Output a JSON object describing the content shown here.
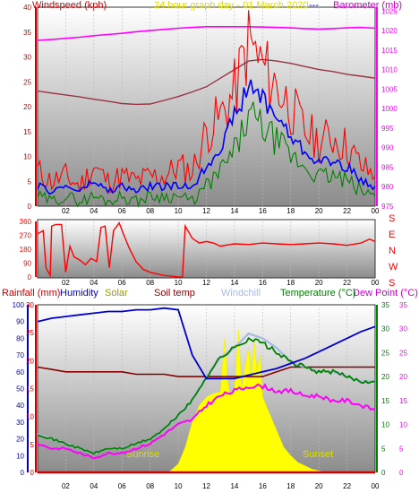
{
  "colors": {
    "wind_axis": "#cc0000",
    "gust": "#ff0000",
    "wind_avg": "#0000ff",
    "wind_low": "#008000",
    "barometer": "#ff00ff",
    "baro_trend": "#993344",
    "title": "#dddd00",
    "dir": "#ff0000",
    "rain": "#cc0000",
    "humidity": "#0000cc",
    "solar": "#ffff00",
    "soil": "#880000",
    "windchill": "#aabbdd",
    "temperature": "#008000",
    "dewpoint": "#ff00ff"
  },
  "chart_data": [
    {
      "type": "line",
      "title": "24 hour graph day - 01 March 2020",
      "title_suffix": "---",
      "xlabel": "",
      "x_ticks": [
        "02",
        "04",
        "06",
        "08",
        "10",
        "12",
        "14",
        "16",
        "18",
        "20",
        "22",
        "00"
      ],
      "x": [
        0,
        1,
        2,
        3,
        4,
        5,
        6,
        7,
        8,
        9,
        10,
        11,
        12,
        13,
        14,
        15,
        16,
        17,
        18,
        19,
        20,
        21,
        22,
        23,
        24
      ],
      "left_axis": {
        "label": "Windspeed (kph)",
        "ticks": [
          "0",
          "5",
          "10",
          "15",
          "20",
          "25",
          "30",
          "35",
          "40"
        ],
        "ylim": [
          0,
          40
        ]
      },
      "right_axis": {
        "label": "Barometer (mb)",
        "ticks": [
          "975",
          "980",
          "985",
          "990",
          "995",
          "1000",
          "1005",
          "1010",
          "1015",
          "1020",
          "1025"
        ],
        "ylim": [
          975,
          1026
        ]
      },
      "series": [
        {
          "key": "gust",
          "axis": "left",
          "values": [
            7,
            5,
            6,
            4,
            8,
            5,
            6,
            5,
            6,
            6,
            8,
            7,
            15,
            18,
            23,
            33,
            28,
            24,
            20,
            15,
            13,
            14,
            12,
            8,
            6
          ]
        },
        {
          "key": "avg",
          "axis": "left",
          "values": [
            4,
            3,
            4,
            3,
            5,
            3,
            4,
            3,
            4,
            4,
            4,
            4,
            8,
            12,
            18,
            24,
            22,
            18,
            14,
            11,
            9,
            9,
            8,
            5,
            4
          ]
        },
        {
          "key": "low",
          "axis": "left",
          "values": [
            2,
            1,
            2,
            1,
            2,
            1,
            2,
            1,
            2,
            2,
            2,
            1,
            4,
            7,
            11,
            18,
            16,
            13,
            10,
            8,
            6,
            6,
            5,
            3,
            2
          ]
        },
        {
          "key": "baro",
          "axis": "right",
          "values": [
            1017.5,
            1017.7,
            1018.0,
            1018.3,
            1018.7,
            1019.0,
            1019.3,
            1019.7,
            1020.0,
            1020.3,
            1020.6,
            1020.8,
            1021.0,
            1021.0,
            1021.0,
            1021.0,
            1020.9,
            1020.8,
            1020.7,
            1020.5,
            1020.4,
            1020.5,
            1020.7,
            1020.8,
            1020.6
          ]
        },
        {
          "key": "baro_trend",
          "axis": "right",
          "values": [
            1004.5,
            1004.0,
            1003.5,
            1003.0,
            1002.4,
            1001.9,
            1001.3,
            1001.1,
            1001.2,
            1002.1,
            1003.1,
            1004.3,
            1005.6,
            1007.8,
            1010.0,
            1012.2,
            1012.6,
            1012.2,
            1011.6,
            1010.8,
            1010.0,
            1009.5,
            1008.8,
            1008.3,
            1007.8
          ]
        }
      ]
    },
    {
      "type": "line",
      "title": "",
      "x_ticks": [
        "02",
        "04",
        "06",
        "08",
        "10",
        "12",
        "14",
        "16",
        "18",
        "20",
        "22",
        "00"
      ],
      "left_axis": {
        "ticks": [
          "0",
          "90",
          "180",
          "270",
          "360"
        ],
        "ylim": [
          0,
          360
        ]
      },
      "compass_labels": [
        "S",
        "E",
        "N",
        "W",
        "S"
      ],
      "series": [
        {
          "key": "direction",
          "axis": "left",
          "x": [
            0,
            0.4,
            0.6,
            0.9,
            1.0,
            1.3,
            1.7,
            2.0,
            2.3,
            2.6,
            3.0,
            3.4,
            3.8,
            4.2,
            4.5,
            4.8,
            5.1,
            5.4,
            5.8,
            6.1,
            6.5,
            7.0,
            7.5,
            8.0,
            8.5,
            9.0,
            9.5,
            10.0,
            10.3,
            10.5,
            11.0,
            11.5,
            12.0,
            12.5,
            13.0,
            14.0,
            15.0,
            16.0,
            17.0,
            18.0,
            19.0,
            20.0,
            21.0,
            22.0,
            23.0,
            23.6,
            24.0
          ],
          "values": [
            280,
            300,
            60,
            10,
            330,
            340,
            340,
            30,
            200,
            130,
            110,
            80,
            120,
            100,
            320,
            330,
            60,
            300,
            350,
            280,
            190,
            100,
            50,
            30,
            20,
            10,
            5,
            0,
            0,
            330,
            250,
            220,
            230,
            220,
            200,
            215,
            210,
            220,
            215,
            210,
            215,
            220,
            215,
            205,
            220,
            245,
            230
          ]
        }
      ]
    },
    {
      "type": "line",
      "title": "",
      "x_ticks": [
        "02",
        "04",
        "06",
        "08",
        "10",
        "12",
        "14",
        "16",
        "18",
        "20",
        "22",
        "00"
      ],
      "x": [
        0,
        1,
        2,
        3,
        4,
        5,
        6,
        7,
        8,
        9,
        10,
        11,
        12,
        13,
        14,
        15,
        16,
        17,
        18,
        19,
        20,
        21,
        22,
        23,
        24
      ],
      "legend": [
        "Rainfall (mm)",
        "Humidity",
        "Solar",
        "Soil temp",
        "Windchill",
        "Temperature (°C)",
        "Dew Point (°C)"
      ],
      "left_axis": {
        "ticks": [
          "0",
          "10",
          "20",
          "30",
          "40",
          "50",
          "60",
          "70",
          "80",
          "90",
          "100"
        ],
        "ylim": [
          0,
          100
        ]
      },
      "rain_axis": {
        "ticks": [
          "0",
          "5",
          "10",
          "15",
          "20",
          "25",
          "30"
        ],
        "ylim": [
          0,
          30
        ]
      },
      "right_axis": {
        "ticks": [
          "0",
          "5",
          "10",
          "15",
          "20",
          "25",
          "30",
          "35"
        ],
        "ylim": [
          0,
          35
        ]
      },
      "annotations": [
        "Sunrise",
        "Sunset"
      ],
      "series": [
        {
          "key": "humidity",
          "axis": "left",
          "values": [
            90,
            92,
            93,
            94,
            95,
            96,
            96,
            97,
            97,
            98,
            97,
            70,
            56,
            56,
            56,
            58,
            60,
            62,
            65,
            68,
            72,
            76,
            80,
            84,
            87
          ]
        },
        {
          "key": "temperature",
          "axis": "right",
          "values": [
            8,
            7,
            6,
            5,
            4,
            5,
            5,
            6,
            7,
            9,
            12,
            15,
            20,
            24,
            26,
            28,
            27,
            25,
            23,
            22,
            21,
            21,
            20,
            19,
            19
          ]
        },
        {
          "key": "windchill",
          "axis": "right",
          "values": [
            8,
            7,
            6,
            5,
            4,
            5,
            5,
            6,
            7,
            9,
            12,
            15,
            20,
            24,
            26,
            29,
            28,
            26,
            23,
            22,
            21,
            21,
            20,
            19,
            19
          ]
        },
        {
          "key": "dewpoint",
          "axis": "right",
          "values": [
            6,
            5,
            5,
            4,
            3,
            4,
            4,
            5,
            6,
            8,
            10,
            11,
            14,
            16,
            17,
            18,
            18,
            17,
            17,
            16,
            16,
            15,
            15,
            14,
            13
          ]
        },
        {
          "key": "soil",
          "axis": "right",
          "values": [
            22,
            21.5,
            21,
            21,
            21,
            21,
            21,
            20.5,
            20.5,
            20.5,
            20,
            20,
            20,
            20,
            20,
            20,
            20,
            21,
            22,
            22,
            22,
            22,
            22,
            22,
            22
          ]
        },
        {
          "key": "solar",
          "axis": "left",
          "x": [
            9.3,
            10,
            10.5,
            11,
            11.5,
            12,
            12.5,
            13,
            13.3,
            13.5,
            13.7,
            14,
            14.3,
            14.5,
            14.7,
            15,
            15.2,
            15.4,
            15.6,
            15.8,
            16,
            16.5,
            17,
            17.5,
            18,
            18.5,
            19,
            19.5,
            20.5
          ],
          "values": [
            0,
            5,
            15,
            30,
            40,
            45,
            47,
            48,
            80,
            55,
            45,
            50,
            85,
            50,
            60,
            75,
            55,
            80,
            60,
            70,
            45,
            35,
            25,
            15,
            10,
            6,
            4,
            2,
            0
          ]
        },
        {
          "key": "rain",
          "axis": "rain",
          "values": [
            0,
            0,
            0,
            0,
            0,
            0,
            0,
            0,
            0,
            0,
            0,
            0,
            0,
            0,
            0,
            0,
            0,
            0,
            0,
            0,
            0,
            0,
            0,
            0,
            0
          ]
        }
      ]
    }
  ]
}
